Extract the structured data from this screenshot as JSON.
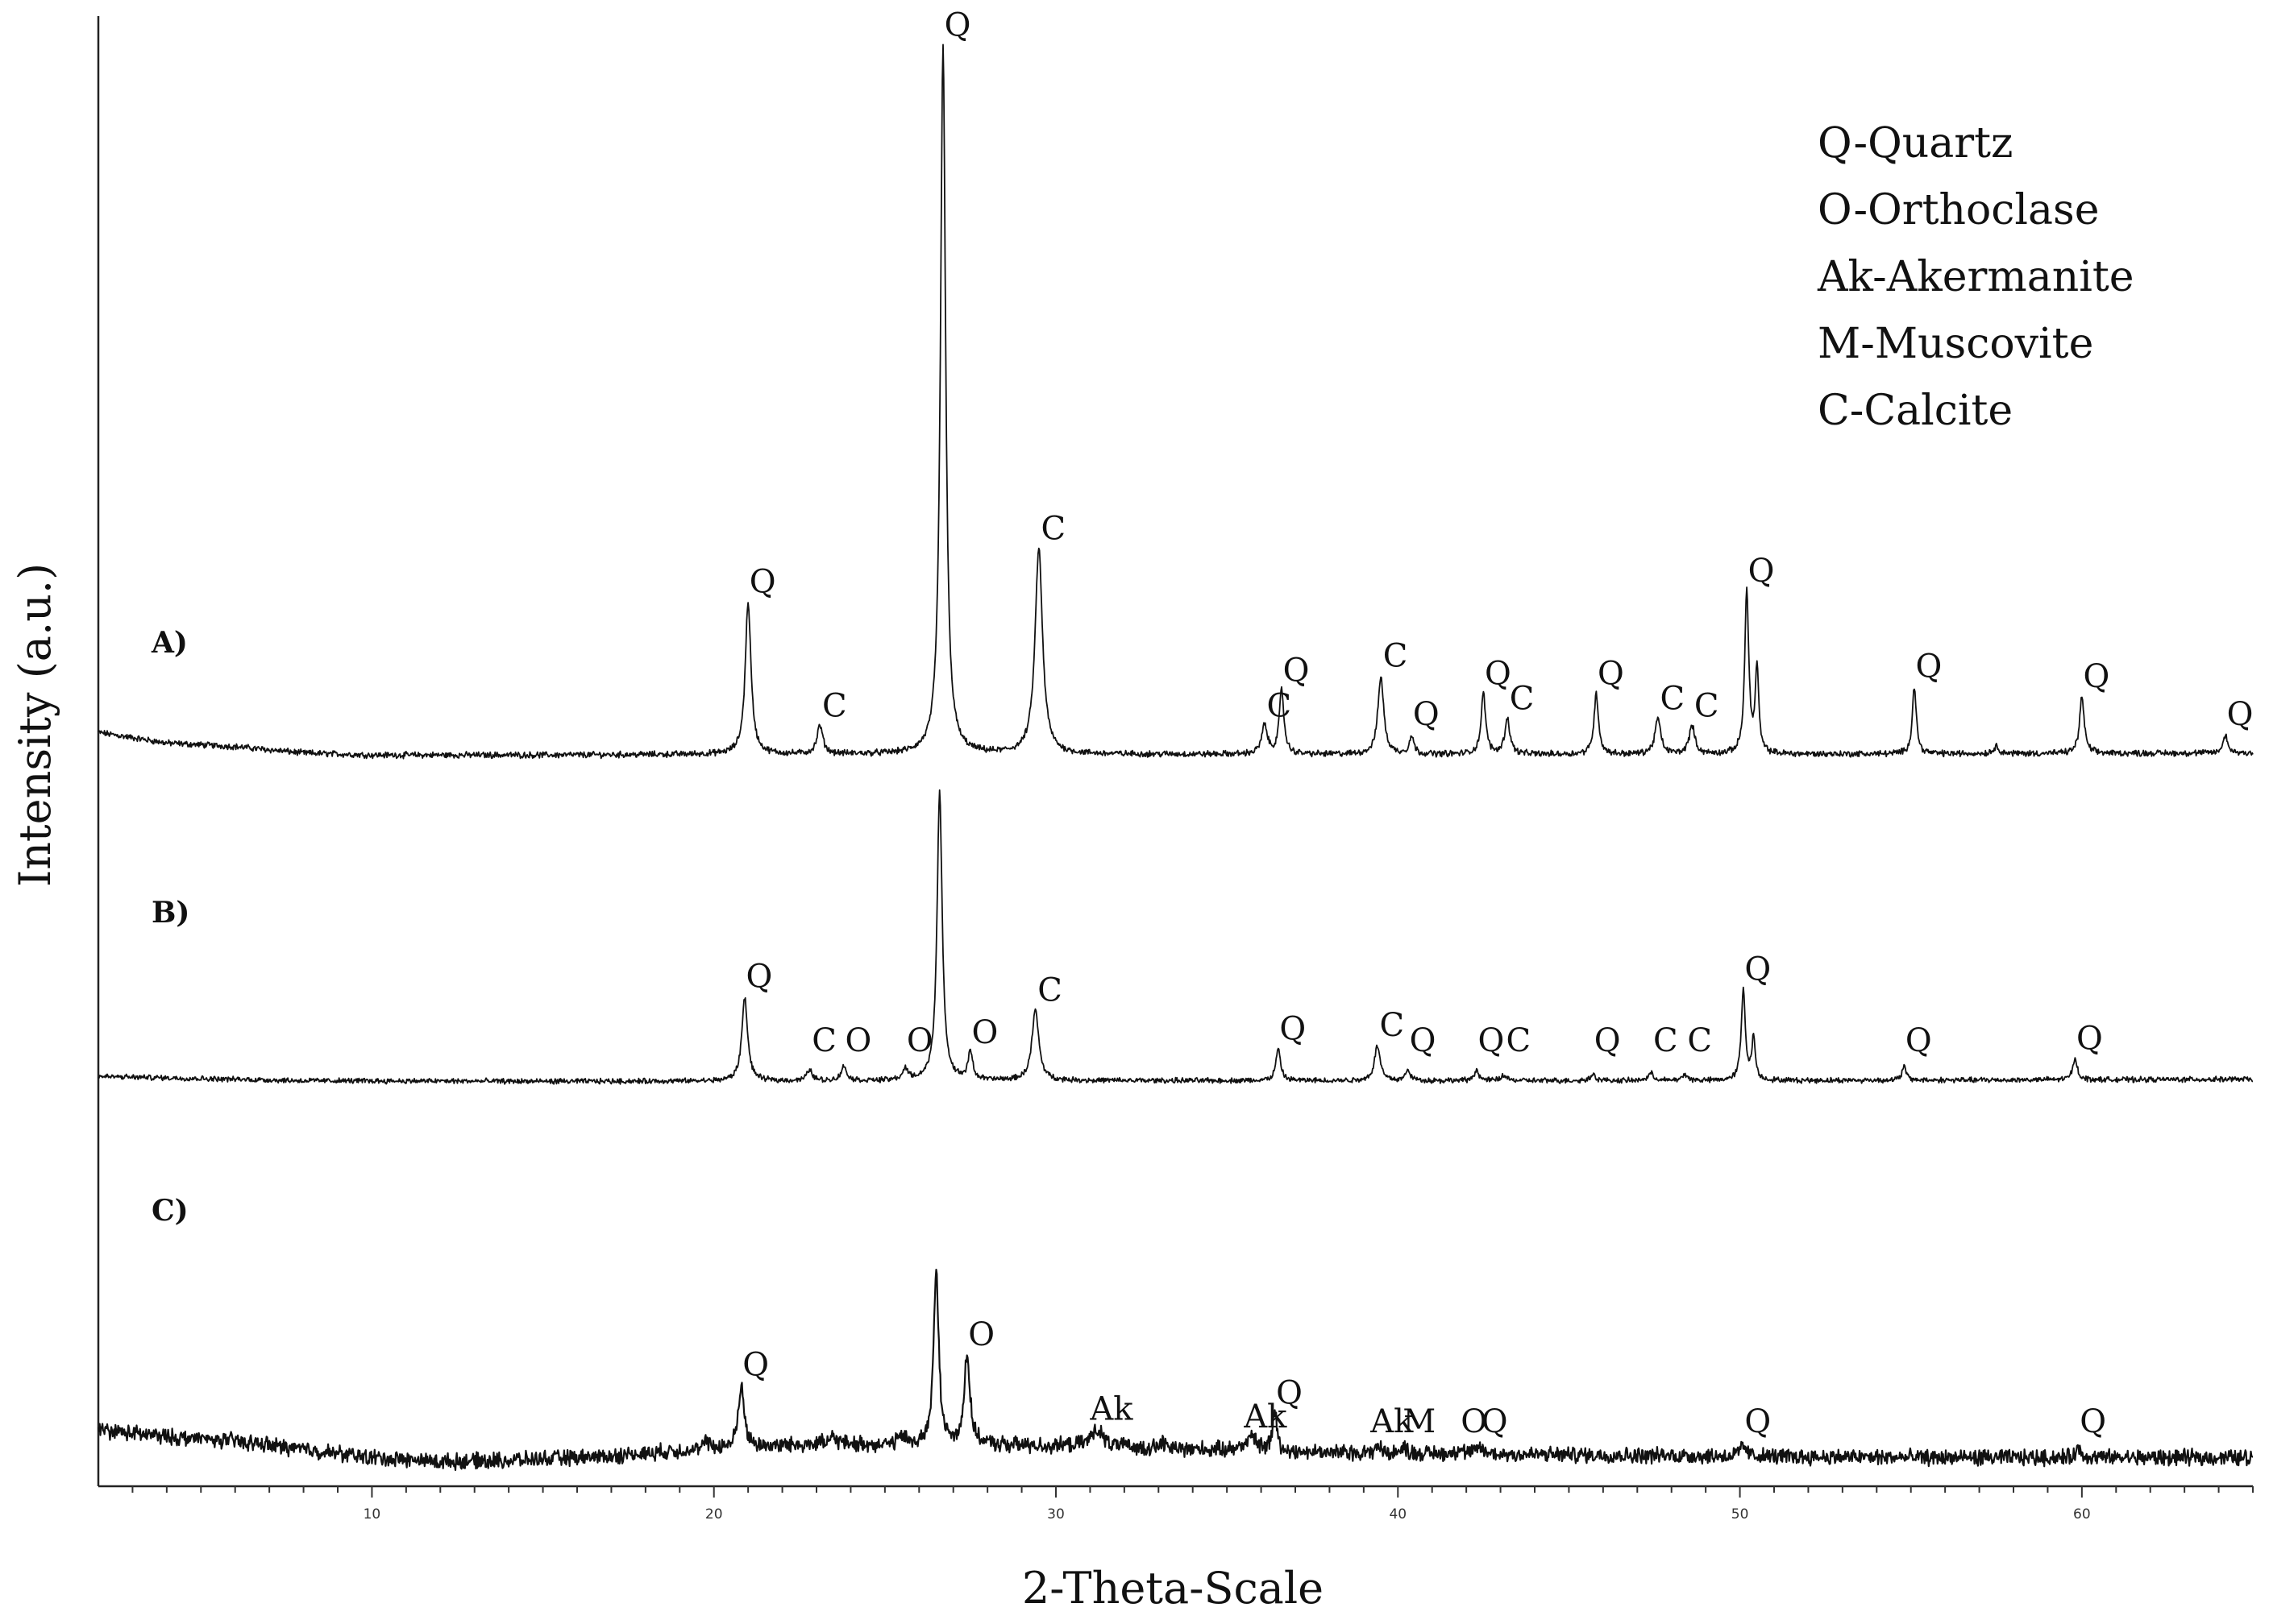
{
  "chart_data": {
    "type": "line",
    "xlabel": "2-Theta-Scale",
    "ylabel": "Intensity (a.u.)",
    "xlim": [
      2,
      65
    ],
    "x_ticks": [
      10,
      20,
      30,
      40,
      50,
      60
    ],
    "legend": [
      "Q-Quartz",
      "O-Orthoclase",
      "Ak-Akermanite",
      "M-Muscovite",
      "C-Calcite"
    ],
    "legend_placement": "top-right",
    "line_color": "#111111",
    "series": [
      {
        "label": "A)",
        "background": [
          [
            2,
            0.035
          ],
          [
            4,
            0.02
          ],
          [
            6,
            0.015
          ],
          [
            8,
            0.006
          ],
          [
            10,
            0.003
          ],
          [
            15,
            0.003
          ],
          [
            20,
            0.004
          ],
          [
            30,
            0.004
          ],
          [
            40,
            0.004
          ],
          [
            50,
            0.004
          ],
          [
            65,
            0.006
          ]
        ],
        "peaks": [
          {
            "x": 21.0,
            "h": 0.215,
            "w": 0.1,
            "label": "Q"
          },
          {
            "x": 23.1,
            "h": 0.04,
            "w": 0.1,
            "label": "C"
          },
          {
            "x": 26.7,
            "h": 1.0,
            "w": 0.09,
            "label": "Q"
          },
          {
            "x": 29.5,
            "h": 0.29,
            "w": 0.13,
            "label": "C"
          },
          {
            "x": 36.1,
            "h": 0.04,
            "w": 0.1,
            "label": "C"
          },
          {
            "x": 36.6,
            "h": 0.09,
            "w": 0.08,
            "label": "Q"
          },
          {
            "x": 39.5,
            "h": 0.11,
            "w": 0.1,
            "label": "C"
          },
          {
            "x": 40.4,
            "h": 0.025,
            "w": 0.08,
            "label": "Q"
          },
          {
            "x": 42.5,
            "h": 0.085,
            "w": 0.08,
            "label": "Q"
          },
          {
            "x": 43.2,
            "h": 0.05,
            "w": 0.09,
            "label": "C"
          },
          {
            "x": 45.8,
            "h": 0.085,
            "w": 0.08,
            "label": "Q"
          },
          {
            "x": 47.6,
            "h": 0.05,
            "w": 0.1,
            "label": "C"
          },
          {
            "x": 48.6,
            "h": 0.04,
            "w": 0.1,
            "label": "C"
          },
          {
            "x": 50.2,
            "h": 0.23,
            "w": 0.07,
            "label": "Q"
          },
          {
            "x": 50.5,
            "h": 0.12,
            "w": 0.06,
            "label": ""
          },
          {
            "x": 55.1,
            "h": 0.095,
            "w": 0.07,
            "label": "Q"
          },
          {
            "x": 57.5,
            "h": 0.01,
            "w": 0.1,
            "label": ""
          },
          {
            "x": 60.0,
            "h": 0.08,
            "w": 0.08,
            "label": "Q"
          },
          {
            "x": 64.2,
            "h": 0.025,
            "w": 0.08,
            "label": "Q"
          }
        ]
      },
      {
        "label": "B)",
        "background": [
          [
            2,
            0.01
          ],
          [
            4,
            0.008
          ],
          [
            8,
            0.004
          ],
          [
            15,
            0.003
          ],
          [
            30,
            0.004
          ],
          [
            50,
            0.004
          ],
          [
            65,
            0.006
          ]
        ],
        "peaks": [
          {
            "x": 20.9,
            "h": 0.12,
            "w": 0.1,
            "label": "Q"
          },
          {
            "x": 22.8,
            "h": 0.015,
            "w": 0.1,
            "label": "C"
          },
          {
            "x": 23.8,
            "h": 0.02,
            "w": 0.1,
            "label": "O"
          },
          {
            "x": 25.6,
            "h": 0.015,
            "w": 0.1,
            "label": "O"
          },
          {
            "x": 26.6,
            "h": 0.41,
            "w": 0.09,
            "label": ""
          },
          {
            "x": 27.5,
            "h": 0.04,
            "w": 0.08,
            "label": "O"
          },
          {
            "x": 29.4,
            "h": 0.1,
            "w": 0.12,
            "label": "C"
          },
          {
            "x": 36.5,
            "h": 0.045,
            "w": 0.08,
            "label": "Q"
          },
          {
            "x": 39.4,
            "h": 0.05,
            "w": 0.1,
            "label": "C"
          },
          {
            "x": 40.3,
            "h": 0.015,
            "w": 0.08,
            "label": "Q"
          },
          {
            "x": 42.3,
            "h": 0.015,
            "w": 0.08,
            "label": "Q"
          },
          {
            "x": 43.1,
            "h": 0.008,
            "w": 0.09,
            "label": "C"
          },
          {
            "x": 45.7,
            "h": 0.01,
            "w": 0.08,
            "label": "Q"
          },
          {
            "x": 47.4,
            "h": 0.01,
            "w": 0.1,
            "label": "C"
          },
          {
            "x": 48.4,
            "h": 0.008,
            "w": 0.1,
            "label": "C"
          },
          {
            "x": 50.1,
            "h": 0.13,
            "w": 0.07,
            "label": "Q"
          },
          {
            "x": 50.4,
            "h": 0.06,
            "w": 0.06,
            "label": ""
          },
          {
            "x": 54.8,
            "h": 0.02,
            "w": 0.07,
            "label": "Q"
          },
          {
            "x": 59.8,
            "h": 0.03,
            "w": 0.08,
            "label": "Q"
          }
        ]
      },
      {
        "label": "C)",
        "background": [
          [
            2,
            0.05
          ],
          [
            4,
            0.04
          ],
          [
            6,
            0.034
          ],
          [
            8,
            0.022
          ],
          [
            10,
            0.01
          ],
          [
            12,
            0.004
          ],
          [
            14,
            0.006
          ],
          [
            17,
            0.012
          ],
          [
            19,
            0.02
          ],
          [
            21,
            0.025
          ],
          [
            23,
            0.03
          ],
          [
            25,
            0.028
          ],
          [
            28,
            0.028
          ],
          [
            31,
            0.026
          ],
          [
            34,
            0.022
          ],
          [
            37,
            0.018
          ],
          [
            40,
            0.016
          ],
          [
            45,
            0.014
          ],
          [
            50,
            0.012
          ],
          [
            55,
            0.01
          ],
          [
            60,
            0.01
          ],
          [
            65,
            0.01
          ]
        ],
        "peaks": [
          {
            "x": 19.8,
            "h": 0.01,
            "w": 0.1,
            "label": ""
          },
          {
            "x": 20.8,
            "h": 0.09,
            "w": 0.1,
            "label": "Q"
          },
          {
            "x": 23.5,
            "h": 0.01,
            "w": 0.12,
            "label": ""
          },
          {
            "x": 25.5,
            "h": 0.012,
            "w": 0.12,
            "label": ""
          },
          {
            "x": 26.5,
            "h": 0.25,
            "w": 0.09,
            "label": ""
          },
          {
            "x": 27.4,
            "h": 0.13,
            "w": 0.1,
            "label": "O"
          },
          {
            "x": 31.2,
            "h": 0.025,
            "w": 0.2,
            "label": "Ak"
          },
          {
            "x": 33.1,
            "h": 0.008,
            "w": 0.1,
            "label": ""
          },
          {
            "x": 35.7,
            "h": 0.02,
            "w": 0.2,
            "label": "Ak"
          },
          {
            "x": 36.4,
            "h": 0.055,
            "w": 0.08,
            "label": "Q"
          },
          {
            "x": 39.4,
            "h": 0.01,
            "w": 0.1,
            "label": "Ak"
          },
          {
            "x": 40.2,
            "h": 0.008,
            "w": 0.1,
            "label": "M"
          },
          {
            "x": 41.8,
            "h": 0.008,
            "w": 0.1,
            "label": "O"
          },
          {
            "x": 42.4,
            "h": 0.01,
            "w": 0.1,
            "label": "Q"
          },
          {
            "x": 50.1,
            "h": 0.015,
            "w": 0.1,
            "label": "Q"
          },
          {
            "x": 59.9,
            "h": 0.012,
            "w": 0.1,
            "label": "Q"
          }
        ]
      }
    ]
  }
}
